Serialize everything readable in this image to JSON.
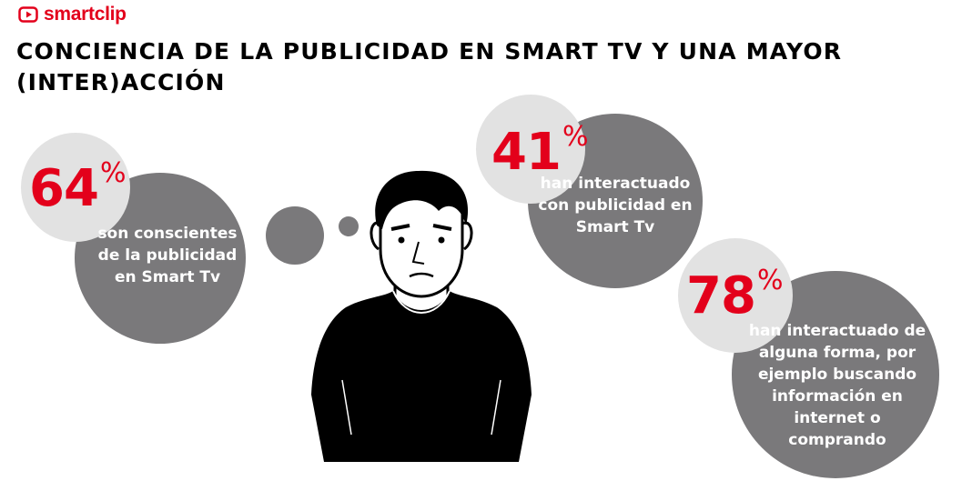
{
  "brand": {
    "name": "smartclip",
    "color": "#e3001b",
    "icon": "play-icon"
  },
  "title": "CONCIENCIA DE LA PUBLICIDAD EN SMART TV Y UNA MAYOR (INTER)ACCIÓN",
  "colors": {
    "accent": "#e3001b",
    "bubble_dark": "#7a797b",
    "bubble_light": "#e2e2e2"
  },
  "stats": [
    {
      "value": "64",
      "unit": "%",
      "label": "son conscientes de la publicidad en Smart Tv"
    },
    {
      "value": "41",
      "unit": "%",
      "label": "han interactuado con publicidad en Smart Tv"
    },
    {
      "value": "78",
      "unit": "%",
      "label": "han interactuado de alguna forma, por ejemplo buscando información en internet o comprando"
    }
  ],
  "illustration": {
    "icon": "man-thinking-illustration"
  }
}
